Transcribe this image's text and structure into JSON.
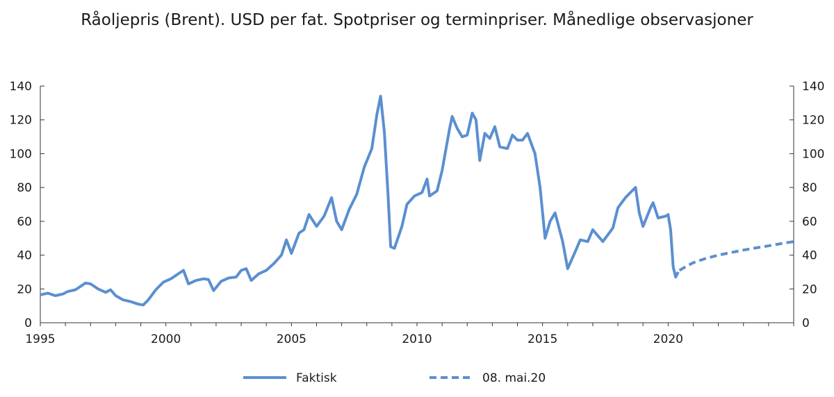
{
  "chart_data": {
    "type": "line",
    "title": "Råoljepris (Brent). USD per fat. Spotpriser og terminpriser. Månedlige observasjoner",
    "xlabel": "",
    "ylabel": "",
    "xlim": [
      1995,
      2025
    ],
    "ylim": [
      0,
      140
    ],
    "x_ticks": [
      "1995",
      "2000",
      "2005",
      "2010",
      "2015",
      "2020"
    ],
    "y_ticks": [
      "0",
      "20",
      "40",
      "60",
      "80",
      "100",
      "120",
      "140"
    ],
    "grid": false,
    "legend_position": "bottom",
    "line_color": "#5b8fd0",
    "series": [
      {
        "name": "Faktisk",
        "style": "solid",
        "x": [
          1995.0,
          1995.3,
          1995.6,
          1995.9,
          1996.1,
          1996.4,
          1996.8,
          1997.0,
          1997.3,
          1997.6,
          1997.8,
          1998.0,
          1998.3,
          1998.6,
          1998.9,
          1999.1,
          1999.3,
          1999.6,
          1999.9,
          2000.2,
          2000.5,
          2000.7,
          2000.9,
          2001.2,
          2001.5,
          2001.7,
          2001.9,
          2002.2,
          2002.5,
          2002.8,
          2003.0,
          2003.2,
          2003.4,
          2003.7,
          2004.0,
          2004.3,
          2004.6,
          2004.8,
          2005.0,
          2005.3,
          2005.5,
          2005.7,
          2006.0,
          2006.3,
          2006.6,
          2006.8,
          2007.0,
          2007.3,
          2007.6,
          2007.9,
          2008.2,
          2008.4,
          2008.55,
          2008.7,
          2008.85,
          2008.95,
          2009.1,
          2009.4,
          2009.6,
          2009.9,
          2010.2,
          2010.4,
          2010.5,
          2010.8,
          2011.0,
          2011.3,
          2011.4,
          2011.6,
          2011.8,
          2012.0,
          2012.2,
          2012.35,
          2012.5,
          2012.7,
          2012.9,
          2013.1,
          2013.3,
          2013.6,
          2013.8,
          2014.0,
          2014.2,
          2014.4,
          2014.7,
          2014.9,
          2015.1,
          2015.3,
          2015.5,
          2015.8,
          2016.0,
          2016.3,
          2016.5,
          2016.8,
          2017.0,
          2017.4,
          2017.8,
          2018.0,
          2018.3,
          2018.5,
          2018.7,
          2018.85,
          2019.0,
          2019.3,
          2019.4,
          2019.6,
          2019.9,
          2020.0,
          2020.1,
          2020.2,
          2020.3,
          2020.4
        ],
        "values": [
          16.5,
          17.5,
          16.0,
          17.0,
          18.5,
          19.5,
          23.5,
          23.0,
          20.0,
          18.0,
          19.5,
          16.0,
          13.5,
          12.5,
          11.0,
          10.5,
          13.5,
          19.5,
          24.0,
          26.0,
          29.0,
          31.0,
          23.0,
          25.0,
          26.0,
          25.5,
          19.0,
          24.5,
          26.5,
          27.0,
          31.0,
          32.0,
          25.0,
          29.0,
          31.0,
          35.0,
          40.0,
          49.0,
          41.0,
          53.0,
          55.0,
          64.0,
          57.0,
          63.0,
          74.0,
          60.0,
          55.0,
          67.0,
          76.0,
          92.0,
          103.0,
          123.0,
          134.0,
          113.0,
          75.0,
          45.0,
          44.0,
          57.0,
          70.0,
          75.0,
          77.0,
          85.0,
          75.0,
          78.0,
          90.0,
          115.0,
          122.0,
          115.0,
          110.0,
          111.0,
          124.0,
          120.0,
          96.0,
          112.0,
          109.0,
          116.0,
          104.0,
          103.0,
          111.0,
          108.0,
          108.0,
          112.0,
          100.0,
          80.0,
          50.0,
          60.0,
          65.0,
          48.0,
          32.0,
          42.0,
          49.0,
          48.0,
          55.0,
          48.0,
          56.0,
          68.0,
          74.0,
          77.0,
          80.0,
          65.0,
          57.0,
          68.0,
          71.0,
          62.0,
          63.0,
          64.0,
          55.0,
          33.0,
          27.0,
          30.0
        ]
      },
      {
        "name": "08. mai.20",
        "style": "dashed",
        "x": [
          2020.45,
          2020.8,
          2021.0,
          2021.5,
          2022.0,
          2022.5,
          2023.0,
          2023.5,
          2024.0,
          2024.5,
          2025.0
        ],
        "values": [
          31.0,
          34.0,
          35.5,
          38.0,
          40.0,
          41.5,
          43.0,
          44.3,
          45.5,
          46.8,
          48.0
        ]
      }
    ]
  }
}
